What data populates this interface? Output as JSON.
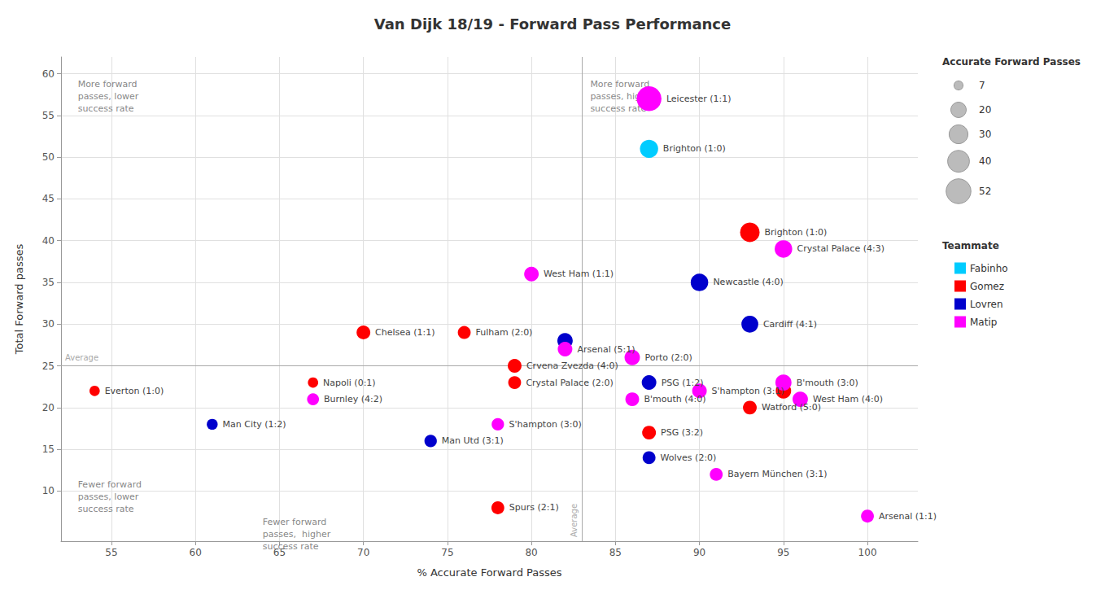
{
  "chart_data": {
    "type": "scatter",
    "title": "Van Dijk 18/19 - Forward Pass Performance",
    "xlabel": "% Accurate Forward Passes",
    "ylabel": "Total Forward passes",
    "xlim": [
      52,
      103
    ],
    "ylim": [
      4,
      62
    ],
    "xticks": [
      55,
      60,
      65,
      70,
      75,
      80,
      85,
      90,
      95,
      100
    ],
    "yticks": [
      10,
      15,
      20,
      25,
      30,
      35,
      40,
      45,
      50,
      55,
      60
    ],
    "grid": true,
    "legend": "right",
    "legend_title": "Teammate",
    "avg_x": 83,
    "avg_y": 25,
    "avg_label": "Average",
    "size_legend": {
      "title": "Accurate Forward Passes",
      "values": [
        7,
        20,
        30,
        40,
        52
      ]
    },
    "series": [
      {
        "name": "Fabinho",
        "color": "#00CCFF",
        "x": [
          87
        ],
        "y": [
          51
        ],
        "size": [
          28
        ],
        "labels": [
          "Brighton (1:0)"
        ]
      },
      {
        "name": "Gomez",
        "color": "#FF0000",
        "x": [
          54,
          67,
          70,
          76,
          79,
          78,
          79,
          87,
          93,
          95,
          93
        ],
        "y": [
          22,
          23,
          29,
          29,
          25,
          8,
          23,
          17,
          41,
          22,
          20
        ],
        "size": [
          9,
          9,
          16,
          14,
          16,
          14,
          14,
          16,
          32,
          20,
          16
        ],
        "labels": [
          "Everton (1:0)",
          "Napoli (0:1)",
          "Chelsea (1:1)",
          "Fulham (2:0)",
          "Crvena Zvezda (4:0)",
          "Spurs (2:1)",
          "Crystal Palace (2:0)",
          "PSG (3:2)",
          "Brighton (1:0)",
          null,
          "Watford (5:0)"
        ]
      },
      {
        "name": "Lovren",
        "color": "#0000CC",
        "x": [
          61,
          74,
          82,
          87,
          87,
          90,
          93
        ],
        "y": [
          18,
          16,
          28,
          23,
          14,
          35,
          30
        ],
        "size": [
          10,
          13,
          20,
          18,
          14,
          26,
          24
        ],
        "labels": [
          "Man City (1:2)",
          "Man Utd (3:1)",
          null,
          "PSG (1:2)",
          "Wolves (2:0)",
          "Newcastle (4:0)",
          "Cardiff (4:1)"
        ]
      },
      {
        "name": "Matip",
        "color": "#FF00FF",
        "x": [
          67,
          78,
          80,
          82,
          86,
          86,
          87,
          90,
          91,
          95,
          95,
          96,
          100
        ],
        "y": [
          21,
          18,
          36,
          27,
          26,
          21,
          57,
          22,
          12,
          39,
          23,
          21,
          7
        ],
        "size": [
          12,
          13,
          18,
          18,
          20,
          16,
          52,
          18,
          14,
          26,
          22,
          20,
          14
        ],
        "labels": [
          "Burnley (4:2)",
          "S'hampton (3:0)",
          "West Ham (1:1)",
          "Arsenal (5:1)",
          "Porto (2:0)",
          "B'mouth (4:0)",
          "Leicester (1:1)",
          "S'hampton (3:1)",
          "Bayern München (3:1)",
          "Crystal Palace (4:3)",
          "B'mouth (3:0)",
          "West Ham (4:0)",
          "Arsenal (1:1)"
        ]
      }
    ],
    "annotations": [
      {
        "text": "More forward\npasses, lower\nsuccess rate",
        "x": 53,
        "y": 59.5
      },
      {
        "text": "More forward\npasses, higher\nsuccess rate",
        "x": 83.5,
        "y": 59.5
      },
      {
        "text": "Fewer forward\npasses, lower\nsuccess rate",
        "x": 53,
        "y": 11.5
      },
      {
        "text": "Fewer forward\npasses,  higher\nsuccess rate",
        "x": 64,
        "y": 7.0
      }
    ]
  }
}
